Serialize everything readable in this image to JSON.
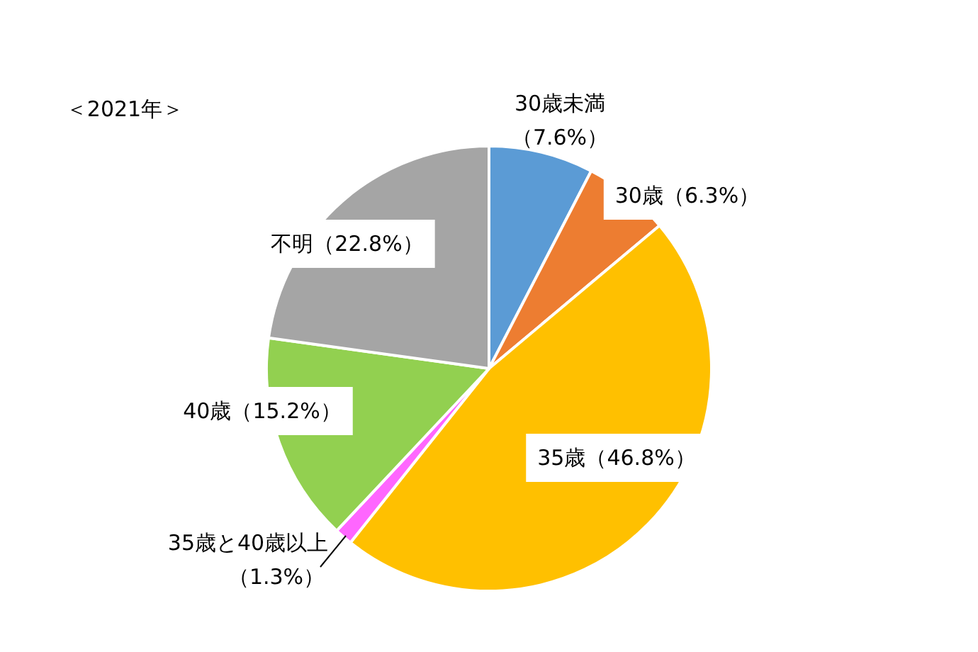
{
  "chart_data": {
    "type": "pie",
    "title": "＜2021年＞",
    "categories": [
      "30歳未満",
      "30歳",
      "35歳",
      "35歳と40歳以上",
      "40歳",
      "不明"
    ],
    "values": [
      7.6,
      6.3,
      46.8,
      1.3,
      15.2,
      22.8
    ],
    "value_labels": [
      "（7.6%）",
      "（6.3%）",
      "（46.8%）",
      "（1.3%）",
      "（15.2%）",
      "（22.8%）"
    ],
    "colors": [
      "#5b9bd5",
      "#ed7d31",
      "#ffc000",
      "#ff66ff",
      "#92d050",
      "#a5a5a5"
    ]
  }
}
